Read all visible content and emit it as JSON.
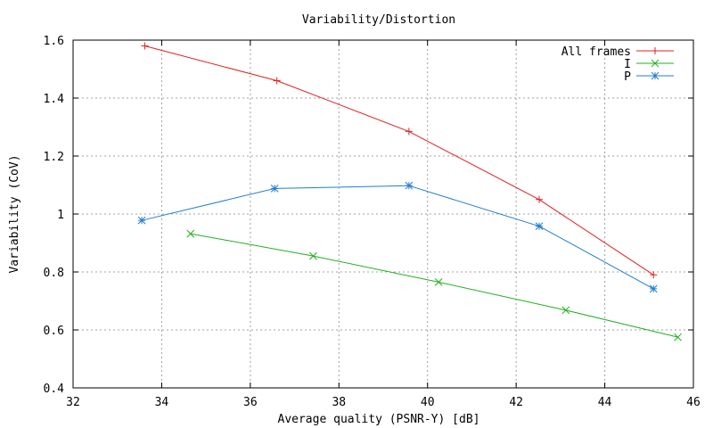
{
  "chart_data": {
    "type": "line",
    "title": "Variability/Distortion",
    "xlabel": "Average quality (PSNR-Y) [dB]",
    "ylabel": "Variability (CoV)",
    "xlim": [
      32,
      46
    ],
    "ylim": [
      0.4,
      1.6
    ],
    "xticks": [
      32,
      34,
      36,
      38,
      40,
      42,
      44,
      46
    ],
    "yticks": [
      0.4,
      0.6,
      0.8,
      1.0,
      1.2,
      1.4,
      1.6
    ],
    "xtick_labels": [
      "32",
      "34",
      "36",
      "38",
      "40",
      "42",
      "44",
      "46"
    ],
    "ytick_labels": [
      "0.4",
      "0.6",
      "0.8",
      "1",
      "1.2",
      "1.4",
      "1.6"
    ],
    "grid": true,
    "legend_position": "top-right",
    "series": [
      {
        "name": "All frames",
        "color": "#e0201b",
        "marker": "plus",
        "points": [
          [
            33.62,
            1.58
          ],
          [
            36.6,
            1.46
          ],
          [
            39.58,
            1.285
          ],
          [
            42.52,
            1.05
          ],
          [
            45.1,
            0.79
          ]
        ]
      },
      {
        "name": "I",
        "color": "#21b021",
        "marker": "cross",
        "points": [
          [
            34.65,
            0.932
          ],
          [
            37.42,
            0.855
          ],
          [
            40.25,
            0.765
          ],
          [
            43.12,
            0.668
          ],
          [
            45.65,
            0.575
          ]
        ]
      },
      {
        "name": "P",
        "color": "#1f7ed0",
        "marker": "star",
        "points": [
          [
            33.55,
            0.978
          ],
          [
            36.55,
            1.088
          ],
          [
            39.58,
            1.098
          ],
          [
            42.52,
            0.958
          ],
          [
            45.1,
            0.742
          ]
        ]
      }
    ]
  }
}
